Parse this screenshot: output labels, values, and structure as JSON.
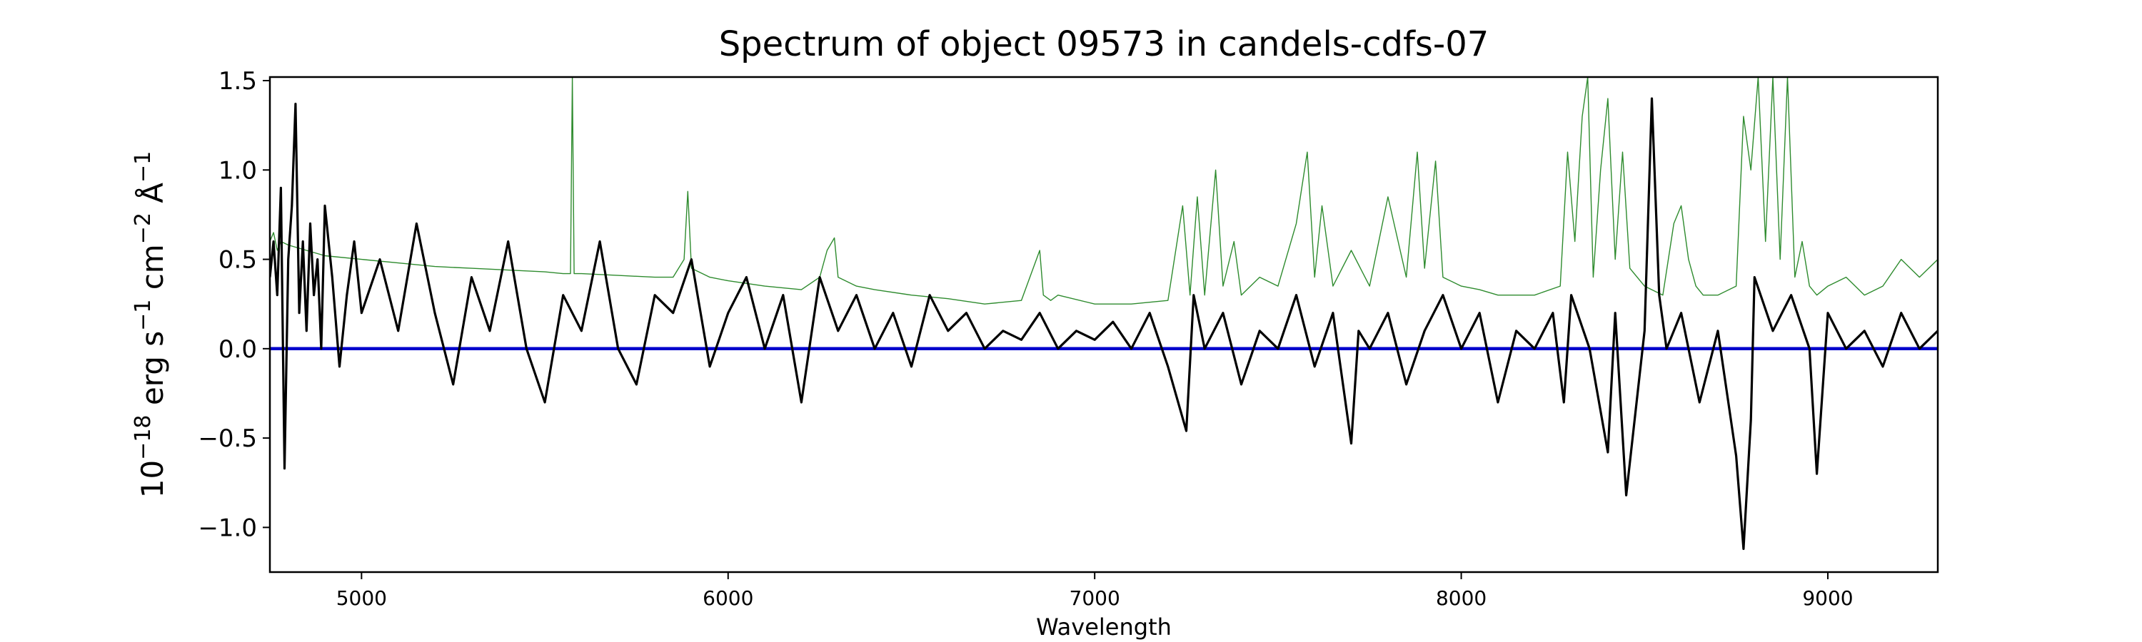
{
  "chart_data": {
    "type": "line",
    "title": "Spectrum of object 09573 in candels-cdfs-07",
    "xlabel": "Wavelength",
    "ylabel": "10^-18 erg s^-1 cm^-2 Å^-1",
    "ylabel_parts": {
      "base1": "10",
      "exp1": "−18",
      "unit1": " erg s",
      "exp2": "−1",
      "unit2": " cm",
      "exp3": "−2",
      "unit3": " Å",
      "exp4": "−1"
    },
    "xlim": [
      4750,
      9300
    ],
    "ylim": [
      -1.25,
      1.52
    ],
    "xticks": [
      5000,
      6000,
      7000,
      8000,
      9000
    ],
    "xtick_labels": [
      "5000",
      "6000",
      "7000",
      "8000",
      "9000"
    ],
    "yticks": [
      -1.0,
      -0.5,
      0.0,
      0.5,
      1.0,
      1.5
    ],
    "ytick_labels": [
      "−1.0",
      "−0.5",
      "0.0",
      "0.5",
      "1.0",
      "1.5"
    ],
    "grid": false,
    "series": [
      {
        "role": "flux",
        "color": "#000000",
        "x": [
          4750,
          4760,
          4770,
          4780,
          4790,
          4800,
          4810,
          4820,
          4830,
          4840,
          4850,
          4860,
          4870,
          4880,
          4890,
          4900,
          4920,
          4940,
          4960,
          4980,
          5000,
          5050,
          5100,
          5150,
          5200,
          5250,
          5300,
          5350,
          5400,
          5450,
          5500,
          5550,
          5600,
          5650,
          5700,
          5750,
          5800,
          5850,
          5900,
          5950,
          6000,
          6050,
          6100,
          6150,
          6200,
          6250,
          6300,
          6350,
          6400,
          6450,
          6500,
          6550,
          6600,
          6650,
          6700,
          6750,
          6800,
          6850,
          6900,
          6950,
          7000,
          7050,
          7100,
          7150,
          7200,
          7250,
          7270,
          7300,
          7350,
          7400,
          7450,
          7500,
          7550,
          7600,
          7650,
          7700,
          7720,
          7750,
          7800,
          7850,
          7900,
          7950,
          8000,
          8050,
          8100,
          8150,
          8200,
          8250,
          8280,
          8300,
          8350,
          8400,
          8420,
          8450,
          8500,
          8520,
          8540,
          8560,
          8600,
          8650,
          8700,
          8750,
          8770,
          8790,
          8800,
          8850,
          8900,
          8950,
          8970,
          9000,
          9050,
          9100,
          9150,
          9200,
          9250,
          9300
        ],
        "y": [
          0.4,
          0.6,
          0.3,
          0.9,
          -0.67,
          0.5,
          0.8,
          1.37,
          0.2,
          0.6,
          0.1,
          0.7,
          0.3,
          0.5,
          0.0,
          0.8,
          0.4,
          -0.1,
          0.3,
          0.6,
          0.2,
          0.5,
          0.1,
          0.7,
          0.2,
          -0.2,
          0.4,
          0.1,
          0.6,
          0.0,
          -0.3,
          0.3,
          0.1,
          0.6,
          0.0,
          -0.2,
          0.3,
          0.2,
          0.5,
          -0.1,
          0.2,
          0.4,
          0.0,
          0.3,
          -0.3,
          0.4,
          0.1,
          0.3,
          0.0,
          0.2,
          -0.1,
          0.3,
          0.1,
          0.2,
          0.0,
          0.1,
          0.05,
          0.2,
          0.0,
          0.1,
          0.05,
          0.15,
          0.0,
          0.2,
          -0.1,
          -0.46,
          0.3,
          0.0,
          0.2,
          -0.2,
          0.1,
          0.0,
          0.3,
          -0.1,
          0.2,
          -0.53,
          0.1,
          0.0,
          0.2,
          -0.2,
          0.1,
          0.3,
          0.0,
          0.2,
          -0.3,
          0.1,
          0.0,
          0.2,
          -0.3,
          0.3,
          0.0,
          -0.58,
          0.2,
          -0.82,
          0.1,
          1.4,
          0.3,
          0.0,
          0.2,
          -0.3,
          0.1,
          -0.6,
          -1.12,
          -0.4,
          0.4,
          0.1,
          0.3,
          0.0,
          -0.7,
          0.2,
          0.0,
          0.1,
          -0.1,
          0.2,
          0.0,
          0.1
        ]
      },
      {
        "role": "model",
        "color": "#2e8b2e",
        "x": [
          4750,
          4760,
          4770,
          4780,
          4800,
          4850,
          4900,
          5000,
          5100,
          5200,
          5300,
          5400,
          5500,
          5550,
          5570,
          5575,
          5580,
          5590,
          5600,
          5700,
          5800,
          5850,
          5880,
          5890,
          5900,
          5950,
          6000,
          6100,
          6200,
          6250,
          6270,
          6290,
          6300,
          6350,
          6400,
          6500,
          6600,
          6700,
          6800,
          6850,
          6860,
          6880,
          6900,
          7000,
          7100,
          7200,
          7240,
          7260,
          7280,
          7300,
          7330,
          7350,
          7380,
          7400,
          7450,
          7500,
          7550,
          7580,
          7600,
          7620,
          7650,
          7700,
          7750,
          7800,
          7850,
          7880,
          7900,
          7930,
          7950,
          8000,
          8050,
          8100,
          8200,
          8270,
          8290,
          8310,
          8330,
          8345,
          8360,
          8380,
          8400,
          8420,
          8440,
          8460,
          8500,
          8550,
          8580,
          8600,
          8620,
          8640,
          8660,
          8700,
          8750,
          8770,
          8790,
          8810,
          8830,
          8850,
          8870,
          8890,
          8910,
          8930,
          8950,
          8970,
          9000,
          9050,
          9100,
          9150,
          9200,
          9250,
          9300
        ],
        "y": [
          0.6,
          0.65,
          0.55,
          0.6,
          0.58,
          0.55,
          0.52,
          0.5,
          0.48,
          0.46,
          0.45,
          0.44,
          0.43,
          0.42,
          0.42,
          1.52,
          0.42,
          0.42,
          0.42,
          0.41,
          0.4,
          0.4,
          0.5,
          0.88,
          0.45,
          0.4,
          0.38,
          0.35,
          0.33,
          0.4,
          0.55,
          0.62,
          0.4,
          0.35,
          0.33,
          0.3,
          0.28,
          0.25,
          0.27,
          0.55,
          0.3,
          0.27,
          0.3,
          0.25,
          0.25,
          0.27,
          0.8,
          0.3,
          0.85,
          0.3,
          1.0,
          0.35,
          0.6,
          0.3,
          0.4,
          0.35,
          0.7,
          1.1,
          0.4,
          0.8,
          0.35,
          0.55,
          0.35,
          0.85,
          0.4,
          1.1,
          0.45,
          1.05,
          0.4,
          0.35,
          0.33,
          0.3,
          0.3,
          0.35,
          1.1,
          0.6,
          1.3,
          1.52,
          0.4,
          1.0,
          1.4,
          0.5,
          1.1,
          0.45,
          0.35,
          0.3,
          0.7,
          0.8,
          0.5,
          0.35,
          0.3,
          0.3,
          0.35,
          1.3,
          1.0,
          1.52,
          0.6,
          1.52,
          0.5,
          1.52,
          0.4,
          0.6,
          0.35,
          0.3,
          0.35,
          0.4,
          0.3,
          0.35,
          0.5,
          0.4,
          0.5
        ]
      },
      {
        "role": "zero",
        "color": "#0000cc",
        "x": [
          4750,
          9300
        ],
        "y": [
          0.0,
          0.0
        ]
      }
    ]
  }
}
